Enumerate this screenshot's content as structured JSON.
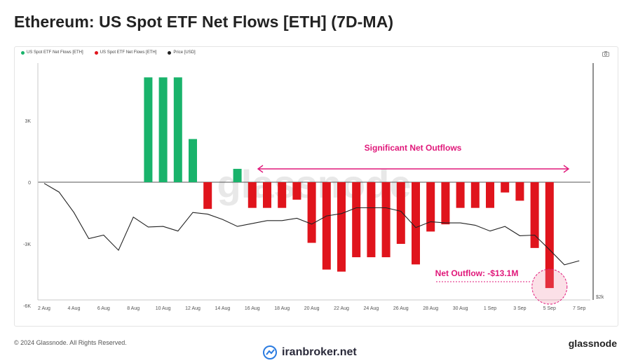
{
  "title": "Ethereum: US Spot ETF Net Flows [ETH] (7D-MA)",
  "legend": [
    {
      "label": "US Spot ETF Net Flows [ETH]",
      "color": "#19b36b"
    },
    {
      "label": "US Spot ETF Net Flows [ETH]",
      "color": "#e0141c"
    },
    {
      "label": "Price [USD]",
      "color": "#222222"
    }
  ],
  "camera_icon": "camera-icon",
  "annotations": {
    "outflows_label": "Significant Net Outflows",
    "net_outflow_label": "Net Outflow: -$13.1M"
  },
  "footer": {
    "copyright": "© 2024 Glassnode. All Rights Reserved.",
    "brand_right": "glassnode",
    "watermark_brand": "iranbroker.net"
  },
  "chart_data": {
    "type": "bar",
    "y_ticks": [
      "3K",
      "0",
      "-3K",
      "-6K"
    ],
    "y2_tick": "$2k",
    "x_tick_labels": [
      "2 Aug",
      "4 Aug",
      "6 Aug",
      "8 Aug",
      "10 Aug",
      "12 Aug",
      "14 Aug",
      "16 Aug",
      "18 Aug",
      "20 Aug",
      "22 Aug",
      "24 Aug",
      "26 Aug",
      "28 Aug",
      "30 Aug",
      "1 Sep",
      "3 Sep",
      "5 Sep",
      "7 Sep"
    ],
    "ylim": [
      -6000,
      5000
    ],
    "flow_dates": [
      "9 Aug",
      "10 Aug",
      "11 Aug",
      "12 Aug",
      "13 Aug",
      "15 Aug",
      "16 Aug",
      "17 Aug",
      "18 Aug",
      "19 Aug",
      "20 Aug",
      "21 Aug",
      "22 Aug",
      "23 Aug",
      "24 Aug",
      "25 Aug",
      "26 Aug",
      "27 Aug",
      "28 Aug",
      "29 Aug",
      "30 Aug",
      "31 Aug",
      "1 Sep",
      "2 Sep",
      "3 Sep",
      "4 Sep",
      "5 Sep"
    ],
    "flow_values": [
      5100,
      5100,
      5100,
      2100,
      -1300,
      650,
      -1250,
      -1250,
      -1250,
      -850,
      -2950,
      -4250,
      -4350,
      -3650,
      -3650,
      -3650,
      -3000,
      -4000,
      -2400,
      -2050,
      -1250,
      -1250,
      -1250,
      -500,
      -900,
      -3200,
      -5150
    ],
    "price_dates": [
      "2 Aug",
      "3 Aug",
      "4 Aug",
      "5 Aug",
      "6 Aug",
      "7 Aug",
      "8 Aug",
      "9 Aug",
      "10 Aug",
      "11 Aug",
      "12 Aug",
      "13 Aug",
      "14 Aug",
      "15 Aug",
      "16 Aug",
      "17 Aug",
      "18 Aug",
      "19 Aug",
      "20 Aug",
      "21 Aug",
      "22 Aug",
      "23 Aug",
      "24 Aug",
      "25 Aug",
      "26 Aug",
      "27 Aug",
      "28 Aug",
      "29 Aug",
      "30 Aug",
      "31 Aug",
      "1 Sep",
      "2 Sep",
      "3 Sep",
      "4 Sep",
      "5 Sep",
      "6 Sep",
      "7 Sep"
    ],
    "price_values": [
      3200,
      3050,
      2700,
      2250,
      2310,
      2050,
      2620,
      2450,
      2460,
      2380,
      2700,
      2670,
      2580,
      2460,
      2510,
      2560,
      2560,
      2600,
      2500,
      2640,
      2680,
      2780,
      2780,
      2780,
      2720,
      2440,
      2540,
      2520,
      2520,
      2480,
      2380,
      2460,
      2300,
      2310,
      2060,
      1800,
      1870
    ],
    "flow_colors": {
      "positive": "#19b36b",
      "negative": "#e0141c"
    }
  }
}
